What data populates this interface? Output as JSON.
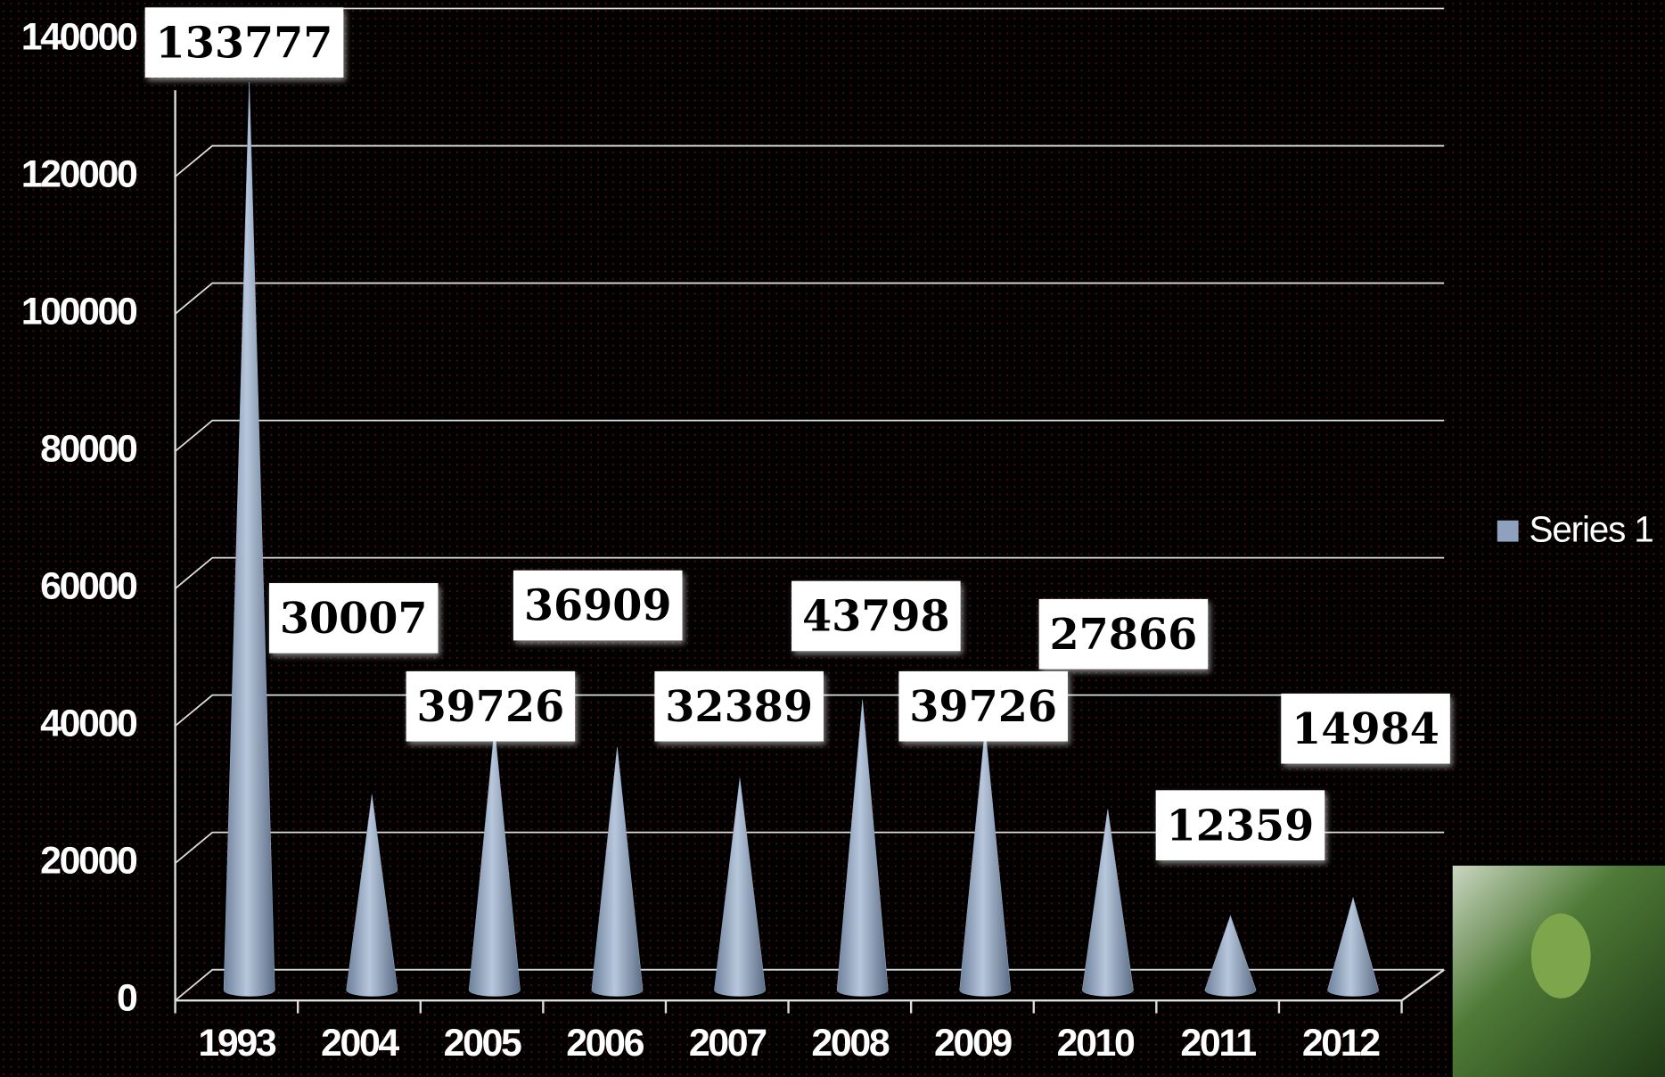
{
  "chart_data": {
    "type": "bar",
    "categories": [
      "1993",
      "2004",
      "2005",
      "2006",
      "2007",
      "2008",
      "2009",
      "2010",
      "2011",
      "2012"
    ],
    "series": [
      {
        "name": "Series 1",
        "color": "#8ea2bd",
        "values": [
          133777,
          30007,
          39726,
          36909,
          32389,
          43798,
          39726,
          27866,
          12359,
          14984
        ]
      }
    ],
    "ylim": [
      0,
      140000
    ],
    "yticks": [
      0,
      20000,
      40000,
      60000,
      80000,
      100000,
      120000,
      140000
    ],
    "grid": true,
    "legend": "right"
  }
}
